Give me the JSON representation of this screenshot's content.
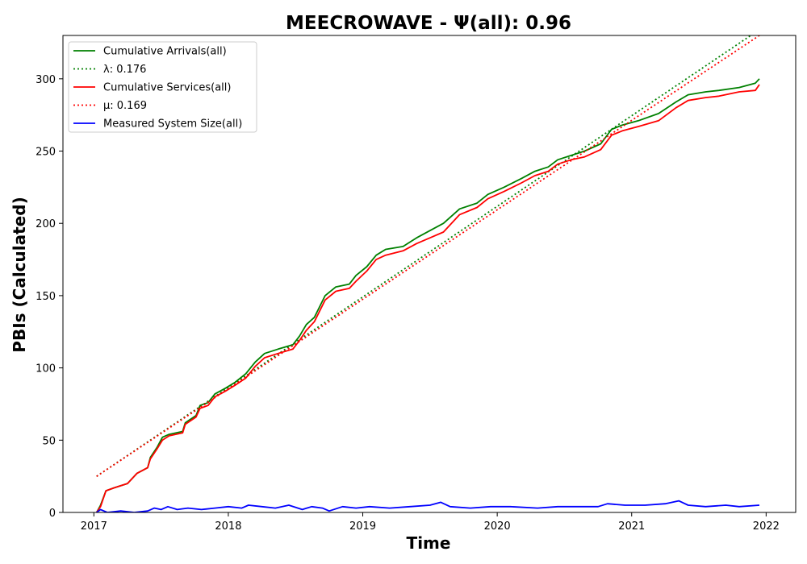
{
  "chart_data": {
    "type": "line",
    "title": "MEECROWAVE -  Ψ(all): 0.96",
    "xlabel": "Time",
    "ylabel": "PBIs (Calculated)",
    "xlim": [
      2016.77,
      2022.22
    ],
    "ylim": [
      0,
      330
    ],
    "xticks": [
      2017,
      2018,
      2019,
      2020,
      2021,
      2022
    ],
    "yticks": [
      0,
      50,
      100,
      150,
      200,
      250,
      300
    ],
    "grid": false,
    "legend_position": "top-left",
    "series": [
      {
        "name": "Cumulative Arrivals(all)",
        "color": "#008000",
        "style": "solid",
        "points": [
          [
            2017.02,
            0
          ],
          [
            2017.05,
            5
          ],
          [
            2017.09,
            15
          ],
          [
            2017.15,
            17
          ],
          [
            2017.25,
            20
          ],
          [
            2017.32,
            27
          ],
          [
            2017.4,
            31
          ],
          [
            2017.42,
            38
          ],
          [
            2017.47,
            45
          ],
          [
            2017.51,
            52
          ],
          [
            2017.56,
            54
          ],
          [
            2017.66,
            56
          ],
          [
            2017.68,
            62
          ],
          [
            2017.76,
            67
          ],
          [
            2017.79,
            74
          ],
          [
            2017.85,
            76
          ],
          [
            2017.9,
            82
          ],
          [
            2017.98,
            86
          ],
          [
            2018.05,
            90
          ],
          [
            2018.13,
            96
          ],
          [
            2018.2,
            104
          ],
          [
            2018.27,
            110
          ],
          [
            2018.37,
            113
          ],
          [
            2018.48,
            116
          ],
          [
            2018.53,
            122
          ],
          [
            2018.58,
            130
          ],
          [
            2018.64,
            135
          ],
          [
            2018.72,
            150
          ],
          [
            2018.8,
            156
          ],
          [
            2018.9,
            158
          ],
          [
            2018.95,
            164
          ],
          [
            2019.03,
            170
          ],
          [
            2019.1,
            178
          ],
          [
            2019.17,
            182
          ],
          [
            2019.3,
            184
          ],
          [
            2019.4,
            190
          ],
          [
            2019.5,
            195
          ],
          [
            2019.6,
            200
          ],
          [
            2019.72,
            210
          ],
          [
            2019.85,
            214
          ],
          [
            2019.93,
            220
          ],
          [
            2020.05,
            225
          ],
          [
            2020.18,
            231
          ],
          [
            2020.28,
            236
          ],
          [
            2020.38,
            239
          ],
          [
            2020.45,
            244
          ],
          [
            2020.55,
            247
          ],
          [
            2020.65,
            250
          ],
          [
            2020.77,
            255
          ],
          [
            2020.85,
            265
          ],
          [
            2020.93,
            268
          ],
          [
            2021.05,
            271
          ],
          [
            2021.2,
            276
          ],
          [
            2021.33,
            284
          ],
          [
            2021.42,
            289
          ],
          [
            2021.55,
            291
          ],
          [
            2021.65,
            292
          ],
          [
            2021.8,
            294
          ],
          [
            2021.92,
            297
          ],
          [
            2021.95,
            300
          ]
        ]
      },
      {
        "name": "λ: 0.176",
        "color": "#008000",
        "style": "dotted",
        "points": [
          [
            2017.02,
            25
          ],
          [
            2021.95,
            334
          ]
        ]
      },
      {
        "name": "Cumulative Services(all)",
        "color": "#ff0000",
        "style": "solid",
        "points": [
          [
            2017.02,
            0
          ],
          [
            2017.05,
            4
          ],
          [
            2017.09,
            15
          ],
          [
            2017.15,
            17
          ],
          [
            2017.25,
            20
          ],
          [
            2017.32,
            27
          ],
          [
            2017.4,
            31
          ],
          [
            2017.42,
            37
          ],
          [
            2017.47,
            44
          ],
          [
            2017.51,
            50
          ],
          [
            2017.56,
            53
          ],
          [
            2017.66,
            55
          ],
          [
            2017.68,
            61
          ],
          [
            2017.76,
            66
          ],
          [
            2017.79,
            72
          ],
          [
            2017.85,
            74
          ],
          [
            2017.9,
            80
          ],
          [
            2017.98,
            84
          ],
          [
            2018.05,
            88
          ],
          [
            2018.13,
            93
          ],
          [
            2018.2,
            101
          ],
          [
            2018.27,
            107
          ],
          [
            2018.37,
            110
          ],
          [
            2018.48,
            113
          ],
          [
            2018.53,
            119
          ],
          [
            2018.58,
            126
          ],
          [
            2018.64,
            132
          ],
          [
            2018.72,
            147
          ],
          [
            2018.8,
            153
          ],
          [
            2018.9,
            155
          ],
          [
            2018.95,
            160
          ],
          [
            2019.03,
            167
          ],
          [
            2019.1,
            175
          ],
          [
            2019.17,
            178
          ],
          [
            2019.3,
            181
          ],
          [
            2019.4,
            186
          ],
          [
            2019.5,
            190
          ],
          [
            2019.6,
            194
          ],
          [
            2019.72,
            206
          ],
          [
            2019.85,
            211
          ],
          [
            2019.93,
            217
          ],
          [
            2020.05,
            222
          ],
          [
            2020.18,
            228
          ],
          [
            2020.28,
            233
          ],
          [
            2020.38,
            236
          ],
          [
            2020.45,
            241
          ],
          [
            2020.55,
            244
          ],
          [
            2020.65,
            246
          ],
          [
            2020.77,
            251
          ],
          [
            2020.85,
            261
          ],
          [
            2020.93,
            264
          ],
          [
            2021.05,
            267
          ],
          [
            2021.2,
            271
          ],
          [
            2021.33,
            280
          ],
          [
            2021.42,
            285
          ],
          [
            2021.55,
            287
          ],
          [
            2021.65,
            288
          ],
          [
            2021.8,
            291
          ],
          [
            2021.92,
            292
          ],
          [
            2021.95,
            296
          ]
        ]
      },
      {
        "name": "μ: 0.169",
        "color": "#ff0000",
        "style": "dotted",
        "points": [
          [
            2017.02,
            25
          ],
          [
            2021.95,
            330
          ]
        ]
      },
      {
        "name": "Measured System Size(all)",
        "color": "#0000ff",
        "style": "solid",
        "points": [
          [
            2017.02,
            0
          ],
          [
            2017.05,
            2
          ],
          [
            2017.1,
            0
          ],
          [
            2017.2,
            1
          ],
          [
            2017.3,
            0
          ],
          [
            2017.4,
            1
          ],
          [
            2017.45,
            3
          ],
          [
            2017.5,
            2
          ],
          [
            2017.55,
            4
          ],
          [
            2017.62,
            2
          ],
          [
            2017.7,
            3
          ],
          [
            2017.8,
            2
          ],
          [
            2017.9,
            3
          ],
          [
            2018.0,
            4
          ],
          [
            2018.1,
            3
          ],
          [
            2018.15,
            5
          ],
          [
            2018.25,
            4
          ],
          [
            2018.35,
            3
          ],
          [
            2018.45,
            5
          ],
          [
            2018.55,
            2
          ],
          [
            2018.62,
            4
          ],
          [
            2018.7,
            3
          ],
          [
            2018.75,
            1
          ],
          [
            2018.85,
            4
          ],
          [
            2018.95,
            3
          ],
          [
            2019.05,
            4
          ],
          [
            2019.2,
            3
          ],
          [
            2019.35,
            4
          ],
          [
            2019.5,
            5
          ],
          [
            2019.58,
            7
          ],
          [
            2019.65,
            4
          ],
          [
            2019.8,
            3
          ],
          [
            2019.95,
            4
          ],
          [
            2020.1,
            4
          ],
          [
            2020.3,
            3
          ],
          [
            2020.45,
            4
          ],
          [
            2020.6,
            4
          ],
          [
            2020.75,
            4
          ],
          [
            2020.82,
            6
          ],
          [
            2020.95,
            5
          ],
          [
            2021.1,
            5
          ],
          [
            2021.25,
            6
          ],
          [
            2021.35,
            8
          ],
          [
            2021.42,
            5
          ],
          [
            2021.55,
            4
          ],
          [
            2021.7,
            5
          ],
          [
            2021.8,
            4
          ],
          [
            2021.95,
            5
          ]
        ]
      }
    ]
  }
}
